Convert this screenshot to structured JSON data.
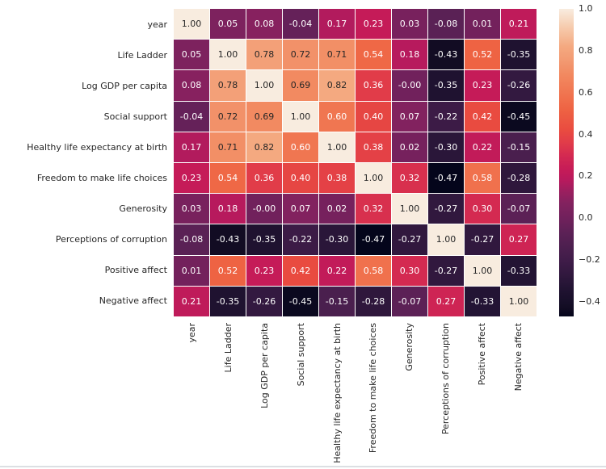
{
  "colors": {
    "background": "#ffffff",
    "grid_line": "#ffffff",
    "label_text": "#262626",
    "annot_dark": "#262626",
    "annot_light": "#ffffff",
    "bottom_divider": "#dcdfe3"
  },
  "chart_data": {
    "type": "heatmap",
    "subtype": "correlation-matrix",
    "title": "",
    "xlabel": "",
    "ylabel": "",
    "grid": "off",
    "legend_position": "right-colorbar",
    "colormap": "rocket",
    "vmin": -0.47,
    "vmax": 1.0,
    "annot_dark_threshold": 0.65,
    "labels": [
      "year",
      "Life Ladder",
      "Log GDP per capita",
      "Social support",
      "Healthy life expectancy at birth",
      "Freedom to make life choices",
      "Generosity",
      "Perceptions of corruption",
      "Positive affect",
      "Negative affect"
    ],
    "matrix": [
      [
        1.0,
        0.05,
        0.08,
        -0.04,
        0.17,
        0.23,
        0.03,
        -0.08,
        0.01,
        0.21
      ],
      [
        0.05,
        1.0,
        0.78,
        0.72,
        0.71,
        0.54,
        0.18,
        -0.43,
        0.52,
        -0.35
      ],
      [
        0.08,
        0.78,
        1.0,
        0.69,
        0.82,
        0.36,
        -0.0,
        -0.35,
        0.23,
        -0.26
      ],
      [
        -0.04,
        0.72,
        0.69,
        1.0,
        0.6,
        0.4,
        0.07,
        -0.22,
        0.42,
        -0.45
      ],
      [
        0.17,
        0.71,
        0.82,
        0.6,
        1.0,
        0.38,
        0.02,
        -0.3,
        0.22,
        -0.15
      ],
      [
        0.23,
        0.54,
        0.36,
        0.4,
        0.38,
        1.0,
        0.32,
        -0.47,
        0.58,
        -0.28
      ],
      [
        0.03,
        0.18,
        -0.0,
        0.07,
        0.02,
        0.32,
        1.0,
        -0.27,
        0.3,
        -0.07
      ],
      [
        -0.08,
        -0.43,
        -0.35,
        -0.22,
        -0.3,
        -0.47,
        -0.27,
        1.0,
        -0.27,
        0.27
      ],
      [
        0.01,
        0.52,
        0.23,
        0.42,
        0.22,
        0.58,
        0.3,
        -0.27,
        1.0,
        -0.33
      ],
      [
        0.21,
        -0.35,
        -0.26,
        -0.45,
        -0.15,
        -0.28,
        -0.07,
        0.27,
        -0.33,
        1.0
      ]
    ],
    "cell_labels": [
      [
        "1.00",
        "0.05",
        "0.08",
        "-0.04",
        "0.17",
        "0.23",
        "0.03",
        "-0.08",
        "0.01",
        "0.21"
      ],
      [
        "0.05",
        "1.00",
        "0.78",
        "0.72",
        "0.71",
        "0.54",
        "0.18",
        "-0.43",
        "0.52",
        "-0.35"
      ],
      [
        "0.08",
        "0.78",
        "1.00",
        "0.69",
        "0.82",
        "0.36",
        "-0.00",
        "-0.35",
        "0.23",
        "-0.26"
      ],
      [
        "-0.04",
        "0.72",
        "0.69",
        "1.00",
        "0.60",
        "0.40",
        "0.07",
        "-0.22",
        "0.42",
        "-0.45"
      ],
      [
        "0.17",
        "0.71",
        "0.82",
        "0.60",
        "1.00",
        "0.38",
        "0.02",
        "-0.30",
        "0.22",
        "-0.15"
      ],
      [
        "0.23",
        "0.54",
        "0.36",
        "0.40",
        "0.38",
        "1.00",
        "0.32",
        "-0.47",
        "0.58",
        "-0.28"
      ],
      [
        "0.03",
        "0.18",
        "-0.00",
        "0.07",
        "0.02",
        "0.32",
        "1.00",
        "-0.27",
        "0.30",
        "-0.07"
      ],
      [
        "-0.08",
        "-0.43",
        "-0.35",
        "-0.22",
        "-0.30",
        "-0.47",
        "-0.27",
        "1.00",
        "-0.27",
        "0.27"
      ],
      [
        "0.01",
        "0.52",
        "0.23",
        "0.42",
        "0.22",
        "0.58",
        "0.30",
        "-0.27",
        "1.00",
        "-0.33"
      ],
      [
        "0.21",
        "-0.35",
        "-0.26",
        "-0.45",
        "-0.15",
        "-0.28",
        "-0.07",
        "0.27",
        "-0.33",
        "1.00"
      ]
    ],
    "colorbar_ticks": [
      {
        "label": "1.0",
        "value": 1.0
      },
      {
        "label": "0.8",
        "value": 0.8
      },
      {
        "label": "0.6",
        "value": 0.6
      },
      {
        "label": "0.4",
        "value": 0.4
      },
      {
        "label": "0.2",
        "value": 0.2
      },
      {
        "label": "0.0",
        "value": 0.0
      },
      {
        "label": "−0.2",
        "value": -0.2
      },
      {
        "label": "−0.4",
        "value": -0.4
      }
    ],
    "colormap_stops": [
      [
        0.0,
        "#04051b"
      ],
      [
        0.027,
        "#120c23"
      ],
      [
        0.048,
        "#170f29"
      ],
      [
        0.082,
        "#1f1230"
      ],
      [
        0.095,
        "#231434"
      ],
      [
        0.136,
        "#31183e"
      ],
      [
        0.184,
        "#401c49"
      ],
      [
        0.218,
        "#4a1f4e"
      ],
      [
        0.272,
        "#5c2156"
      ],
      [
        0.32,
        "#71215c"
      ],
      [
        0.367,
        "#82225f"
      ],
      [
        0.405,
        "#9a1f5f"
      ],
      [
        0.442,
        "#b71a5d"
      ],
      [
        0.476,
        "#c51b58"
      ],
      [
        0.524,
        "#d42a51"
      ],
      [
        0.565,
        "#e13c49"
      ],
      [
        0.605,
        "#e94b40"
      ],
      [
        0.673,
        "#ee6343"
      ],
      [
        0.714,
        "#f0714d"
      ],
      [
        0.789,
        "#f28a61"
      ],
      [
        0.85,
        "#f3a078"
      ],
      [
        0.878,
        "#f4a980"
      ],
      [
        0.94,
        "#f6cbad"
      ],
      [
        1.0,
        "#f8ecdf"
      ]
    ]
  }
}
